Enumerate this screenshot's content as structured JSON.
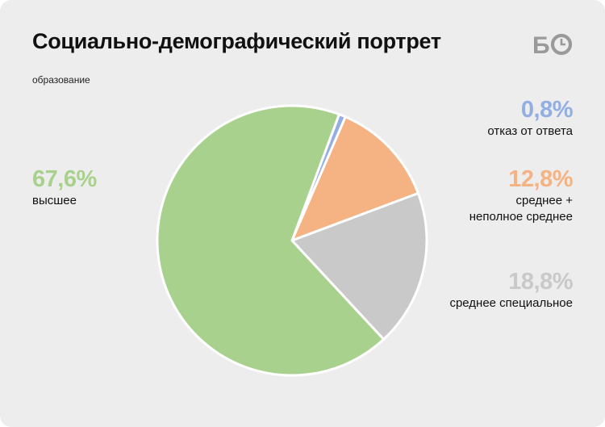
{
  "header": {
    "title": "Социально-демографический портрет",
    "subtitle": "образование"
  },
  "logo": {
    "text": "БО",
    "icon": "clock-icon",
    "color": "#9a9a9a"
  },
  "chart_data": {
    "type": "pie",
    "title": "Социально-демографический портрет",
    "subtitle": "образование",
    "slices": [
      {
        "label": "отказ от ответа",
        "value": 0.8,
        "display": "0,8%",
        "color": "#92aee2"
      },
      {
        "label": "среднее + неполное среднее",
        "value": 12.8,
        "display": "12,8%",
        "color": "#f5b283"
      },
      {
        "label": "среднее специальное",
        "value": 18.8,
        "display": "18,8%",
        "color": "#c9c9c9"
      },
      {
        "label": "высшее",
        "value": 67.6,
        "display": "67,6%",
        "color": "#a9d18e"
      }
    ],
    "start_label_line": "0,8%",
    "legend": "none"
  },
  "labels": {
    "refusal": {
      "pct": "0,8%",
      "lines": [
        "отказ от ответа"
      ],
      "color": "#92aee2"
    },
    "secondary": {
      "pct": "12,8%",
      "lines": [
        "среднее +",
        "неполное среднее"
      ],
      "color": "#f5b283"
    },
    "special": {
      "pct": "18,8%",
      "lines": [
        "среднее специальное"
      ],
      "color": "#c9c9c9"
    },
    "higher": {
      "pct": "67,6%",
      "lines": [
        "высшее"
      ],
      "color": "#a9d18e"
    }
  }
}
